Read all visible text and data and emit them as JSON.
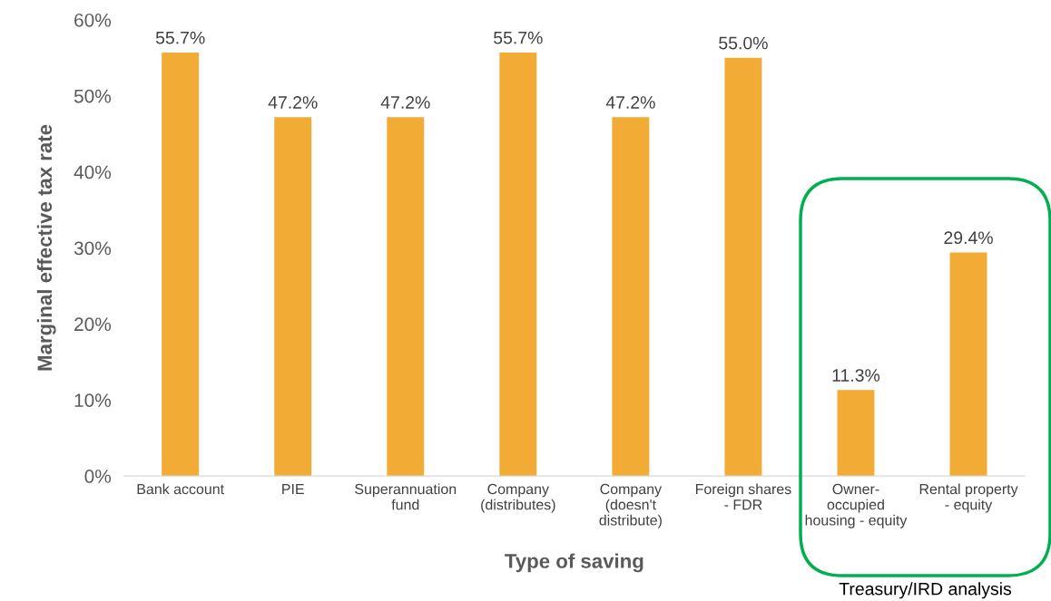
{
  "chart_data": {
    "type": "bar",
    "xlabel": "Type of saving",
    "ylabel": "Marginal effective tax rate",
    "categories": [
      "Bank account",
      "PIE",
      "Superannuation\nfund",
      "Company\n(distributes)",
      "Company\n(doesn't\ndistribute)",
      "Foreign shares\n- FDR",
      "Owner-\noccupied\nhousing - equity",
      "Rental property\n- equity"
    ],
    "values": [
      55.7,
      47.2,
      47.2,
      55.7,
      47.2,
      55.0,
      11.3,
      29.4
    ],
    "color": "#f2ac36",
    "value_labels": [
      "55.7%",
      "47.2%",
      "47.2%",
      "55.7%",
      "47.2%",
      "55.0%",
      "11.3%",
      "29.4%"
    ],
    "ylim": [
      0,
      60
    ],
    "yticks": [
      {
        "value": 0,
        "label": "0%"
      },
      {
        "value": 10,
        "label": "10%"
      },
      {
        "value": 20,
        "label": "20%"
      },
      {
        "value": 30,
        "label": "30%"
      },
      {
        "value": 40,
        "label": "40%"
      },
      {
        "value": 50,
        "label": "50%"
      },
      {
        "value": 60,
        "label": "60%"
      }
    ],
    "annotations": [
      "Treasury/IRD analysis"
    ],
    "grid": false,
    "legend": false
  }
}
